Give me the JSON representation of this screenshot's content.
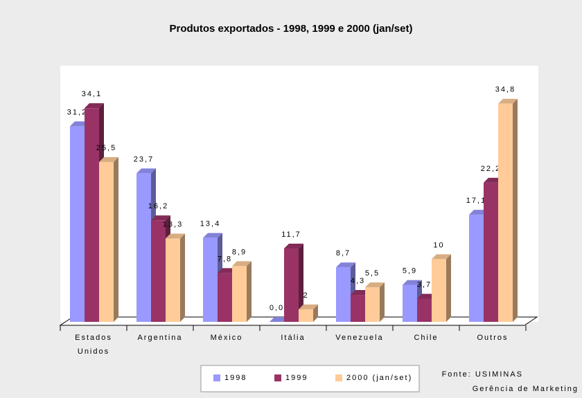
{
  "chart_data": {
    "type": "bar3d",
    "title": "Produtos exportados - 1998, 1999 e 2000 (jan/set)",
    "categories": [
      "Estados Unidos",
      "Argentina",
      "México",
      "Itália",
      "Venezuela",
      "Chile",
      "Outros"
    ],
    "series": [
      {
        "name": "1998",
        "color": "#9999ff",
        "values": [
          31.2,
          23.7,
          13.4,
          0,
          8.7,
          5.9,
          17.1
        ],
        "value_labels": [
          "31,2",
          "23,7",
          "13,4",
          "0,0",
          "8,7",
          "5,9",
          "17,1"
        ]
      },
      {
        "name": "1999",
        "color": "#993366",
        "values": [
          34.1,
          16.2,
          7.8,
          11.7,
          4.3,
          3.7,
          22.2
        ],
        "value_labels": [
          "34,1",
          "16,2",
          "7,8",
          "11,7",
          "4,3",
          "3,7",
          "22,2"
        ]
      },
      {
        "name": "2000 (jan/set)",
        "color": "#ffcc99",
        "values": [
          25.5,
          13.3,
          8.9,
          2,
          5.5,
          10,
          34.8
        ],
        "value_labels": [
          "25,5",
          "13,3",
          "8,9",
          "2",
          "5,5",
          "10",
          "34,8"
        ]
      }
    ],
    "ylim": [
      0,
      35
    ],
    "annotations": [
      "Fonte: USIMINAS",
      "Gerência de Marketing"
    ]
  }
}
